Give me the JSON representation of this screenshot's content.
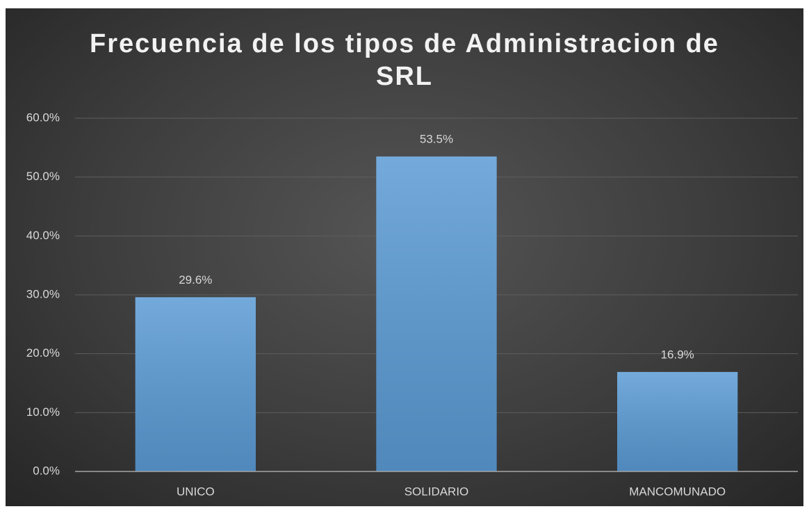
{
  "chart_data": {
    "type": "bar",
    "title": "Frecuencia de los tipos de Administracion de SRL",
    "categories": [
      "UNICO",
      "SOLIDARIO",
      "MANCOMUNADO"
    ],
    "values": [
      29.6,
      53.5,
      16.9
    ],
    "value_labels": [
      "29.6%",
      "53.5%",
      "16.9%"
    ],
    "color": "#5b9bd5",
    "ylim": [
      0,
      60
    ],
    "yticks": [
      {
        "value": 0,
        "label": "0.0%"
      },
      {
        "value": 10,
        "label": "10.0%"
      },
      {
        "value": 20,
        "label": "20.0%"
      },
      {
        "value": 30,
        "label": "30.0%"
      },
      {
        "value": 40,
        "label": "40.0%"
      },
      {
        "value": 50,
        "label": "50.0%"
      },
      {
        "value": 60,
        "label": "60.0%"
      }
    ],
    "grid": true
  }
}
